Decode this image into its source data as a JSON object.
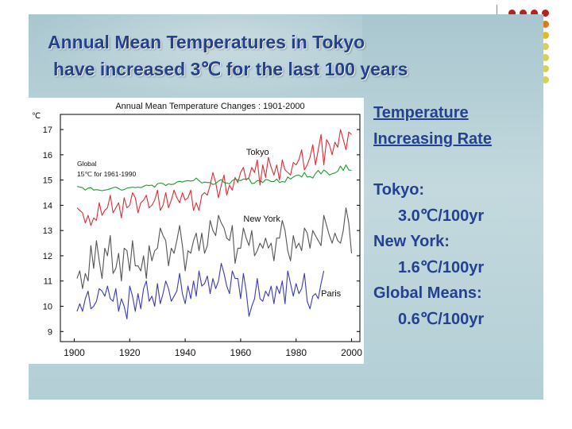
{
  "slide": {
    "title_line1": "Annual Mean Temperatures in Tokyo",
    "title_line2": "have increased 3℃  for the last 100 years"
  },
  "rates": {
    "heading_line1": "Temperature",
    "heading_line2": "Increasing Rate",
    "items": [
      {
        "label": "Tokyo:",
        "value": "3.0℃/100yr"
      },
      {
        "label": "New York:",
        "value": "1.6℃/100yr"
      },
      {
        "label": "Global Means:",
        "value": "0.6℃/100yr"
      }
    ]
  },
  "colors": {
    "title": "#24418f",
    "tokyo": "#d62f3b",
    "global": "#1f9a2e",
    "new_york": "#555555",
    "paris": "#3b3bb8",
    "dots": [
      "#b22222",
      "#d97a1c",
      "#e0b92a",
      "#d8cf5a"
    ]
  },
  "chart_data": {
    "type": "line",
    "title": "Annual Mean Temperature Changes : 1901-2000",
    "ylabel": "℃",
    "xlabel": "",
    "xlim": [
      1895,
      2003
    ],
    "ylim": [
      8.6,
      17.6
    ],
    "x_ticks": [
      1900,
      1920,
      1940,
      1960,
      1980,
      2000
    ],
    "y_ticks": [
      9,
      10,
      11,
      12,
      13,
      14,
      15,
      16,
      17
    ],
    "grid": false,
    "annotations": [
      {
        "text": "Global",
        "x": 1901,
        "y": 15.55
      },
      {
        "text": "15℃ for 1961-1990",
        "x": 1901,
        "y": 15.15
      }
    ],
    "series": [
      {
        "name": "Tokyo",
        "label_pos": {
          "x": 1962,
          "y": 16.0
        },
        "start": 1901,
        "values": [
          13.9,
          13.8,
          13.7,
          13.3,
          13.6,
          13.2,
          13.5,
          13.4,
          14.1,
          13.6,
          13.8,
          13.9,
          14.4,
          13.7,
          13.9,
          14.1,
          13.5,
          14.3,
          13.9,
          14.0,
          14.5,
          14.3,
          13.7,
          14.1,
          14.2,
          14.4,
          13.9,
          14.0,
          14.2,
          14.6,
          13.8,
          14.0,
          14.5,
          13.9,
          14.2,
          14.6,
          14.3,
          14.1,
          14.5,
          14.2,
          14.3,
          14.6,
          13.8,
          14.1,
          13.8,
          14.4,
          14.5,
          14.4,
          14.8,
          15.3,
          14.9,
          14.3,
          14.8,
          15.2,
          14.4,
          14.8,
          14.6,
          15.1,
          14.9,
          15.3,
          15.5,
          15.0,
          15.1,
          15.5,
          15.3,
          15.8,
          14.8,
          15.6,
          15.1,
          15.9,
          15.5,
          15.2,
          15.6,
          15.0,
          15.8,
          15.4,
          15.3,
          15.2,
          15.7,
          15.6,
          15.8,
          16.2,
          15.4,
          15.6,
          15.9,
          16.4,
          15.6,
          16.2,
          16.8,
          15.6,
          16.6,
          16.4,
          16.0,
          16.5,
          16.3,
          17.0,
          16.6,
          16.2,
          16.9,
          16.8
        ]
      },
      {
        "name": "Global",
        "label_pos": null,
        "start": 1901,
        "values": [
          14.75,
          14.72,
          14.7,
          14.6,
          14.68,
          14.7,
          14.6,
          14.62,
          14.6,
          14.58,
          14.6,
          14.62,
          14.65,
          14.7,
          14.72,
          14.66,
          14.6,
          14.62,
          14.68,
          14.7,
          14.72,
          14.7,
          14.72,
          14.7,
          14.75,
          14.8,
          14.78,
          14.8,
          14.72,
          14.85,
          14.88,
          14.86,
          14.78,
          14.85,
          14.82,
          14.84,
          14.92,
          14.95,
          14.92,
          14.96,
          14.98,
          14.96,
          14.98,
          15.08,
          14.98,
          14.88,
          14.92,
          14.9,
          14.9,
          14.82,
          14.86,
          14.96,
          15.02,
          14.9,
          14.88,
          14.85,
          14.98,
          15.04,
          15.0,
          14.98,
          15.04,
          15.04,
          15.06,
          14.86,
          14.88,
          14.98,
          14.98,
          14.9,
          15.02,
          15.0,
          14.94,
          14.94,
          15.04,
          14.9,
          14.94,
          14.92,
          15.12,
          15.04,
          15.12,
          15.18,
          15.2,
          15.12,
          15.3,
          15.12,
          15.14,
          15.08,
          15.26,
          15.38,
          15.24,
          15.4,
          15.32,
          15.2,
          15.25,
          15.28,
          15.35,
          15.55,
          15.38,
          15.6,
          15.4,
          15.38
        ]
      },
      {
        "name": "New York",
        "label_pos": {
          "x": 1961,
          "y": 13.35
        },
        "start": 1901,
        "values": [
          11.1,
          11.4,
          10.7,
          11.3,
          11.0,
          12.4,
          11.5,
          12.6,
          11.8,
          11.1,
          12.3,
          12.0,
          12.8,
          11.3,
          11.5,
          12.1,
          11.0,
          12.3,
          12.2,
          11.4,
          12.6,
          11.6,
          11.6,
          11.4,
          12.0,
          11.1,
          12.4,
          11.8,
          12.2,
          12.3,
          13.1,
          12.8,
          12.6,
          11.6,
          12.3,
          12.1,
          12.6,
          13.2,
          12.4,
          11.4,
          12.2,
          12.1,
          12.6,
          12.9,
          12.2,
          12.9,
          12.1,
          12.4,
          13.4,
          13.0,
          12.8,
          13.6,
          13.3,
          13.1,
          12.7,
          12.6,
          13.2,
          11.7,
          12.3,
          12.3,
          13.1,
          12.7,
          12.4,
          13.0,
          12.0,
          12.2,
          12.5,
          12.3,
          12.7,
          12.3,
          12.5,
          11.8,
          12.7,
          12.7,
          13.4,
          13.0,
          12.2,
          11.8,
          12.8,
          12.3,
          12.5,
          12.2,
          13.1,
          12.9,
          12.3,
          13.0,
          12.8,
          12.6,
          12.4,
          13.6,
          13.2,
          12.8,
          12.5,
          12.9,
          12.6,
          12.5,
          13.0,
          13.9,
          13.3,
          12.1
        ]
      },
      {
        "name": "Paris",
        "label_pos": {
          "x": 1989,
          "y": 10.4
        },
        "start": 1901,
        "values": [
          9.8,
          10.1,
          9.8,
          10.3,
          10.6,
          9.9,
          10.0,
          10.2,
          10.7,
          10.6,
          10.4,
          10.8,
          10.3,
          10.2,
          10.7,
          9.8,
          10.3,
          10.0,
          9.5,
          10.8,
          10.4,
          9.8,
          10.5,
          9.9,
          10.7,
          11.0,
          10.2,
          10.4,
          10.0,
          10.9,
          10.1,
          10.5,
          11.0,
          10.7,
          10.2,
          10.4,
          10.6,
          11.3,
          10.5,
          10.1,
          10.8,
          10.3,
          11.0,
          10.4,
          11.4,
          10.8,
          10.9,
          11.2,
          10.5,
          11.1,
          10.7,
          11.0,
          11.7,
          11.3,
          10.8,
          10.5,
          11.4,
          11.1,
          11.1,
          10.3,
          11.3,
          10.6,
          9.6,
          10.0,
          10.3,
          11.1,
          10.3,
          10.2,
          10.6,
          10.4,
          10.8,
          10.1,
          10.8,
          10.5,
          11.0,
          10.1,
          11.4,
          10.9,
          10.4,
          10.9,
          10.5,
          10.7,
          11.3,
          10.2,
          9.9,
          10.4,
          10.5,
          10.3,
          10.9,
          11.4
        ]
      }
    ]
  }
}
